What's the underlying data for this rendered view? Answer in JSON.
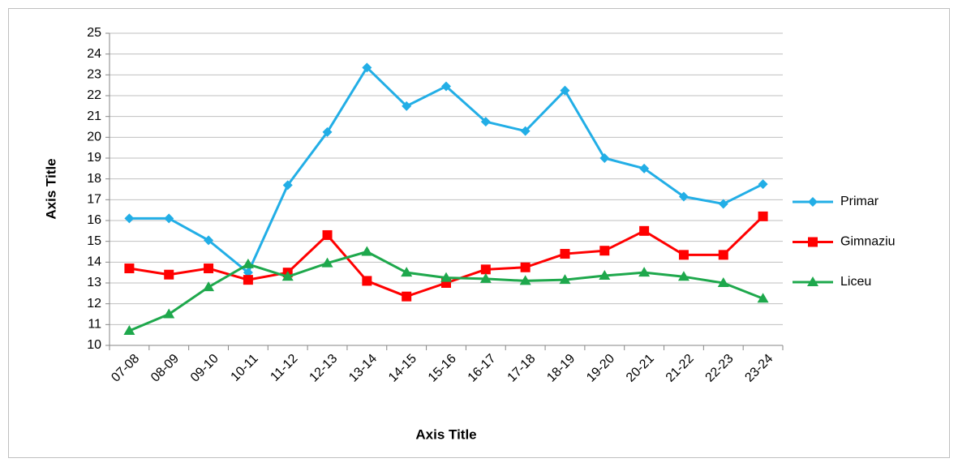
{
  "chart_data": {
    "type": "line",
    "x_label": "Axis Title",
    "y_label": "Axis Title",
    "categories": [
      "07-08",
      "08-09",
      "09-10",
      "10-11",
      "11-12",
      "12-13",
      "13-14",
      "14-15",
      "15-16",
      "16-17",
      "17-18",
      "18-19",
      "19-20",
      "20-21",
      "21-22",
      "22-23",
      "23-24"
    ],
    "series": [
      {
        "name": "Primar",
        "color": "#22aee6",
        "marker": "diamond",
        "values": [
          16.1,
          16.1,
          15.05,
          13.5,
          17.7,
          20.25,
          23.35,
          21.5,
          22.45,
          20.75,
          20.3,
          22.25,
          19.0,
          18.5,
          17.15,
          16.8,
          17.75
        ]
      },
      {
        "name": "Gimnaziu",
        "color": "#ff0000",
        "marker": "square",
        "values": [
          13.7,
          13.4,
          13.7,
          13.15,
          13.5,
          15.3,
          13.1,
          12.35,
          13.0,
          13.65,
          13.75,
          14.4,
          14.55,
          15.5,
          14.35,
          14.35,
          16.2
        ]
      },
      {
        "name": "Liceu",
        "color": "#1ea84c",
        "marker": "triangle",
        "values": [
          10.7,
          11.5,
          12.8,
          13.9,
          13.3,
          13.95,
          14.5,
          13.5,
          13.25,
          13.2,
          13.1,
          13.15,
          13.35,
          13.5,
          13.3,
          13.0,
          12.25
        ]
      }
    ],
    "ylim": [
      10,
      25
    ],
    "yticks": [
      10,
      11,
      12,
      13,
      14,
      15,
      16,
      17,
      18,
      19,
      20,
      21,
      22,
      23,
      24,
      25
    ],
    "grid": true,
    "legend": "right"
  }
}
